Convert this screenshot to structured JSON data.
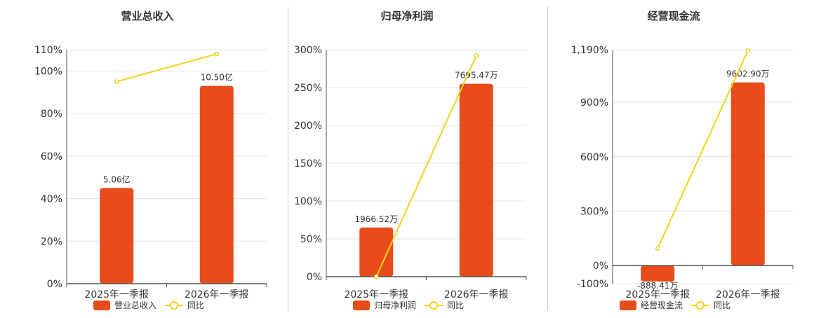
{
  "colors": {
    "bar": "#e84c1b",
    "line": "#f0d21c",
    "grid": "#e3e3ef",
    "axis": "#555555",
    "divider": "#c8c8c8"
  },
  "chart_data": [
    {
      "type": "bar",
      "title": "营业总收入",
      "categories": [
        "2025年一季报",
        "2026年一季报"
      ],
      "series": [
        {
          "name": "营业总收入",
          "values": [
            45,
            93
          ],
          "labels": [
            "5.06亿",
            "10.50亿"
          ]
        },
        {
          "name": "同比",
          "type": "line",
          "values": [
            95,
            108
          ]
        }
      ],
      "ylim": [
        0,
        110
      ],
      "yticks": [
        0,
        20,
        40,
        60,
        80,
        100,
        110
      ],
      "ytick_labels": [
        "0%",
        "20%",
        "40%",
        "60%",
        "80%",
        "100%",
        "110%"
      ],
      "legend": [
        "营业总收入",
        "同比"
      ],
      "legend_position": "bottom",
      "grid": true
    },
    {
      "type": "bar",
      "title": "归母净利润",
      "categories": [
        "2025年一季报",
        "2026年一季报"
      ],
      "series": [
        {
          "name": "归母净利润",
          "values": [
            65,
            255
          ],
          "labels": [
            "1966.52万",
            "7695.47万"
          ]
        },
        {
          "name": "同比",
          "type": "line",
          "values": [
            0,
            292
          ]
        }
      ],
      "ylim": [
        0,
        300
      ],
      "yticks": [
        0,
        50,
        100,
        150,
        200,
        250,
        300
      ],
      "ytick_labels": [
        "0%",
        "50%",
        "100%",
        "150%",
        "200%",
        "250%",
        "300%"
      ],
      "legend": [
        "归母净利润",
        "同比"
      ],
      "legend_position": "bottom",
      "grid": true
    },
    {
      "type": "bar",
      "title": "经营现金流",
      "categories": [
        "2025年一季报",
        "2026年一季报"
      ],
      "series": [
        {
          "name": "经营现金流",
          "values": [
            -88,
            1010
          ],
          "labels": [
            "-888.41万",
            "9602.90万"
          ]
        },
        {
          "name": "同比",
          "type": "line",
          "values": [
            95,
            1185
          ]
        }
      ],
      "ylim": [
        -100,
        1190
      ],
      "yticks": [
        -100,
        0,
        300,
        600,
        900,
        1190
      ],
      "ytick_labels": [
        "-100%",
        "0%",
        "300%",
        "600%",
        "900%",
        "1,190%"
      ],
      "legend": [
        "经营现金流",
        "同比"
      ],
      "legend_position": "bottom",
      "grid": true
    }
  ]
}
